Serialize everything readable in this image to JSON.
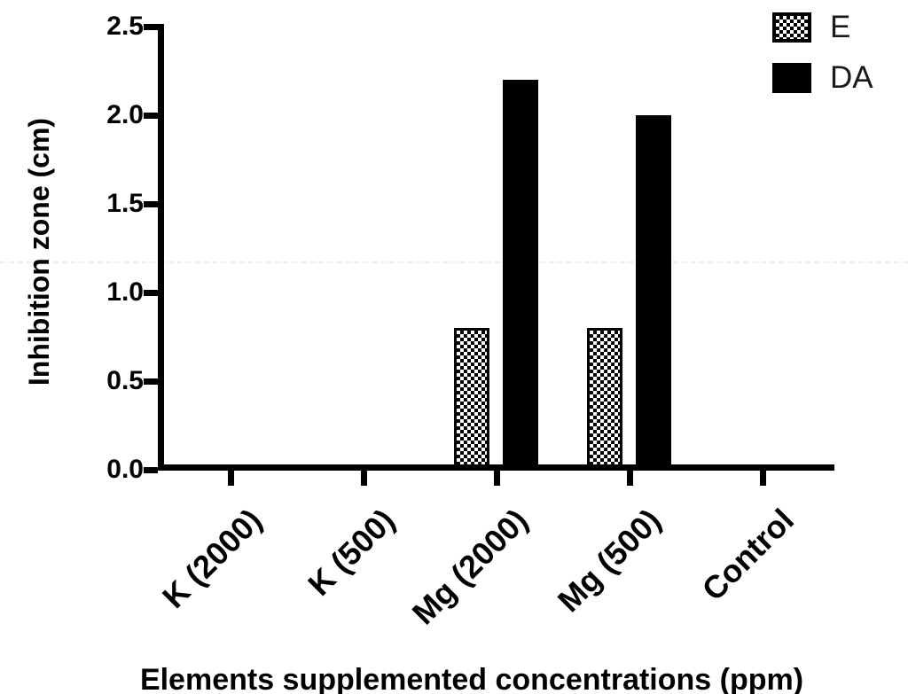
{
  "chart_data": {
    "type": "bar",
    "title": "",
    "xlabel": "Elements supplemented concentrations (ppm)",
    "ylabel": "Inhibition zone (cm)",
    "categories": [
      "K (2000)",
      "K (500)",
      "Mg (2000)",
      "Mg (500)",
      "Control"
    ],
    "series": [
      {
        "name": "E",
        "fill": "checkerboard",
        "color": "#000000",
        "values": [
          0,
          0,
          0.8,
          0.8,
          0
        ]
      },
      {
        "name": "DA",
        "fill": "solid",
        "color": "#000000",
        "values": [
          0,
          0,
          2.2,
          2.0,
          0
        ]
      }
    ],
    "ylim": [
      0,
      2.5
    ],
    "ytick_step": 0.5,
    "yticks": [
      "0.0",
      "0.5",
      "1.0",
      "1.5",
      "2.0",
      "2.5"
    ],
    "grid": false,
    "legend_position": "top-right",
    "background": "#ffffff",
    "axis_color": "#000000"
  }
}
